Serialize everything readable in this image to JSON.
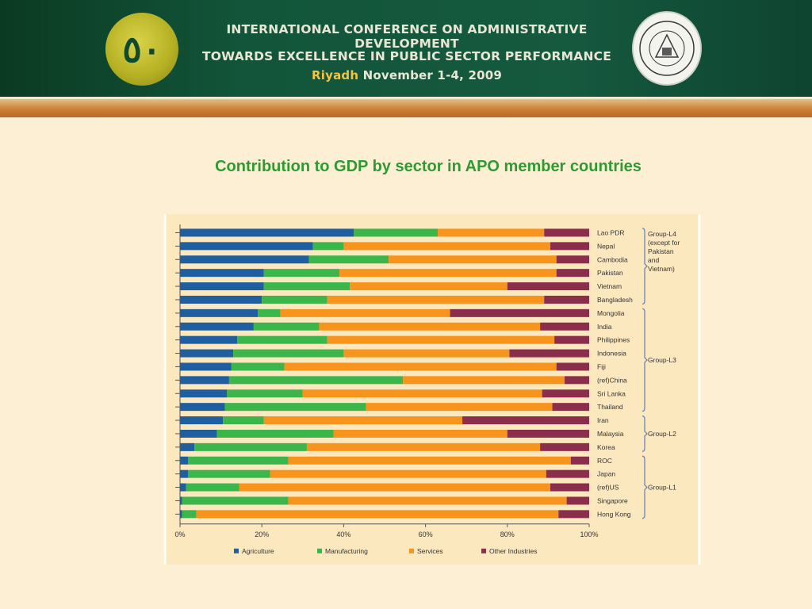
{
  "header": {
    "line1": "INTERNATIONAL CONFERENCE ON ADMINISTRATIVE DEVELOPMENT",
    "line2": "TOWARDS EXCELLENCE IN PUBLIC SECTOR PERFORMANCE",
    "line3_city": "Riyadh",
    "line3_date": "November 1-4, 2009",
    "logo_left_icon": "anniversary-50-logo-icon",
    "logo_right_icon": "institute-seal-icon"
  },
  "slide_title": "Contribution to GDP by sector in APO member countries",
  "chart_data": {
    "type": "bar",
    "orientation": "horizontal",
    "stacked": true,
    "stack_normalized": "100%",
    "categories": [
      "Lao PDR",
      "Nepal",
      "Cambodia",
      "Pakistan",
      "Vietnam",
      "Bangladesh",
      "Mongolia",
      "India",
      "Philippines",
      "Indonesia",
      "Fiji",
      "(ref)China",
      "Sri Lanka",
      "Thailand",
      "Iran",
      "Malaysia",
      "Korea",
      "ROC",
      "Japan",
      "(ref)US",
      "Singapore",
      "Hong Kong"
    ],
    "series": [
      {
        "name": "Agriculture",
        "color": "#1f5fa0",
        "values": [
          42.5,
          32.5,
          31.5,
          20.5,
          20.5,
          20,
          19,
          18,
          14,
          13,
          12.5,
          12,
          11.5,
          11,
          10.5,
          9,
          3.5,
          2,
          2,
          1.5,
          0.5,
          0.5
        ]
      },
      {
        "name": "Manufacturing",
        "color": "#3cb54a",
        "values": [
          20.5,
          7.5,
          19.5,
          18.5,
          21,
          16,
          5.5,
          16,
          22,
          27,
          13,
          42.5,
          18.5,
          34.5,
          10,
          28.5,
          27.5,
          24.5,
          20,
          13,
          26,
          3.5
        ]
      },
      {
        "name": "Services",
        "color": "#f7941d",
        "values": [
          26,
          50.5,
          41,
          53,
          38.5,
          53,
          41.5,
          54,
          55.5,
          40.5,
          66.5,
          39.5,
          58.5,
          45.5,
          48.5,
          42.5,
          57,
          69,
          67.5,
          76,
          68,
          88.5
        ]
      },
      {
        "name": "Other Industries",
        "color": "#8b2e4b",
        "values": [
          11,
          9.5,
          8,
          8,
          20,
          11,
          34,
          12,
          8.5,
          19.5,
          8,
          6,
          11.5,
          9,
          31,
          20,
          12,
          4.5,
          10.5,
          9.5,
          5.5,
          7.5
        ]
      }
    ],
    "x_ticks": [
      "0%",
      "20%",
      "40%",
      "60%",
      "80%",
      "100%"
    ],
    "xlim": [
      0,
      100
    ],
    "legend_position": "bottom",
    "groups": [
      {
        "label_lines": [
          "Group-L4",
          "(except for",
          "Pakistan",
          "and",
          "Vietnam)"
        ],
        "first": 0,
        "last": 5
      },
      {
        "label_lines": [
          "Group-L3"
        ],
        "first": 6,
        "last": 13
      },
      {
        "label_lines": [
          "Group-L2"
        ],
        "first": 14,
        "last": 16
      },
      {
        "label_lines": [
          "Group-L1"
        ],
        "first": 17,
        "last": 21
      }
    ]
  }
}
